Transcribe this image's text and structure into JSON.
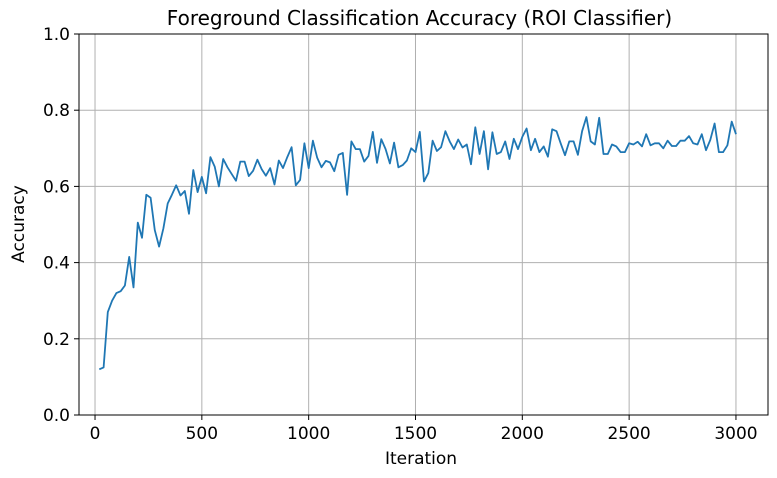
{
  "chart_data": {
    "type": "line",
    "title": "Foreground Classification Accuracy (ROI Classifier)",
    "xlabel": "Iteration",
    "ylabel": "Accuracy",
    "xlim": [
      -75,
      3150
    ],
    "ylim": [
      0,
      1.0
    ],
    "xticks": [
      0,
      500,
      1000,
      1500,
      2000,
      2500,
      3000
    ],
    "yticks": [
      0.0,
      0.2,
      0.4,
      0.6,
      0.8,
      1.0
    ],
    "xtick_labels": [
      "0",
      "500",
      "1000",
      "1500",
      "2000",
      "2500",
      "3000"
    ],
    "ytick_labels": [
      "0.0",
      "0.2",
      "0.4",
      "0.6",
      "0.8",
      "1.0"
    ],
    "grid": true,
    "legend": "none",
    "series": [
      {
        "color": "#1f77b4",
        "x": [
          20,
          40,
          60,
          80,
          100,
          120,
          140,
          160,
          180,
          200,
          220,
          240,
          260,
          280,
          300,
          320,
          340,
          360,
          380,
          400,
          420,
          440,
          460,
          480,
          500,
          520,
          540,
          560,
          580,
          600,
          620,
          640,
          660,
          680,
          700,
          720,
          740,
          760,
          780,
          800,
          820,
          840,
          860,
          880,
          900,
          920,
          940,
          960,
          980,
          1000,
          1020,
          1040,
          1060,
          1080,
          1100,
          1120,
          1140,
          1160,
          1180,
          1200,
          1220,
          1240,
          1260,
          1280,
          1300,
          1320,
          1340,
          1360,
          1380,
          1400,
          1420,
          1440,
          1460,
          1480,
          1500,
          1520,
          1540,
          1560,
          1580,
          1600,
          1620,
          1640,
          1660,
          1680,
          1700,
          1720,
          1740,
          1760,
          1780,
          1800,
          1820,
          1840,
          1860,
          1880,
          1900,
          1920,
          1940,
          1960,
          1980,
          2000,
          2020,
          2040,
          2060,
          2080,
          2100,
          2120,
          2140,
          2160,
          2180,
          2200,
          2220,
          2240,
          2260,
          2280,
          2300,
          2320,
          2340,
          2360,
          2380,
          2400,
          2420,
          2440,
          2460,
          2480,
          2500,
          2520,
          2540,
          2560,
          2580,
          2600,
          2620,
          2640,
          2660,
          2680,
          2700,
          2720,
          2740,
          2760,
          2780,
          2800,
          2820,
          2840,
          2860,
          2880,
          2900,
          2920,
          2940,
          2960,
          2980,
          3000
        ],
        "y": [
          0.12,
          0.125,
          0.27,
          0.3,
          0.32,
          0.325,
          0.34,
          0.415,
          0.335,
          0.505,
          0.465,
          0.578,
          0.57,
          0.485,
          0.442,
          0.49,
          0.555,
          0.578,
          0.603,
          0.576,
          0.588,
          0.528,
          0.643,
          0.585,
          0.625,
          0.582,
          0.677,
          0.652,
          0.6,
          0.672,
          0.65,
          0.632,
          0.615,
          0.665,
          0.665,
          0.627,
          0.641,
          0.67,
          0.645,
          0.628,
          0.648,
          0.605,
          0.668,
          0.648,
          0.677,
          0.703,
          0.603,
          0.617,
          0.713,
          0.648,
          0.72,
          0.675,
          0.65,
          0.667,
          0.663,
          0.64,
          0.683,
          0.688,
          0.578,
          0.718,
          0.698,
          0.698,
          0.665,
          0.68,
          0.743,
          0.662,
          0.724,
          0.698,
          0.66,
          0.715,
          0.65,
          0.656,
          0.668,
          0.7,
          0.69,
          0.743,
          0.613,
          0.635,
          0.72,
          0.693,
          0.703,
          0.745,
          0.718,
          0.698,
          0.723,
          0.702,
          0.71,
          0.658,
          0.755,
          0.685,
          0.745,
          0.645,
          0.742,
          0.685,
          0.69,
          0.718,
          0.672,
          0.725,
          0.698,
          0.73,
          0.752,
          0.695,
          0.725,
          0.69,
          0.705,
          0.678,
          0.75,
          0.745,
          0.712,
          0.682,
          0.718,
          0.718,
          0.683,
          0.745,
          0.782,
          0.718,
          0.71,
          0.78,
          0.685,
          0.685,
          0.71,
          0.705,
          0.69,
          0.69,
          0.713,
          0.71,
          0.717,
          0.705,
          0.737,
          0.708,
          0.713,
          0.713,
          0.7,
          0.72,
          0.706,
          0.706,
          0.72,
          0.72,
          0.732,
          0.713,
          0.71,
          0.737,
          0.695,
          0.722,
          0.765,
          0.69,
          0.69,
          0.708,
          0.77,
          0.737
        ]
      }
    ]
  }
}
